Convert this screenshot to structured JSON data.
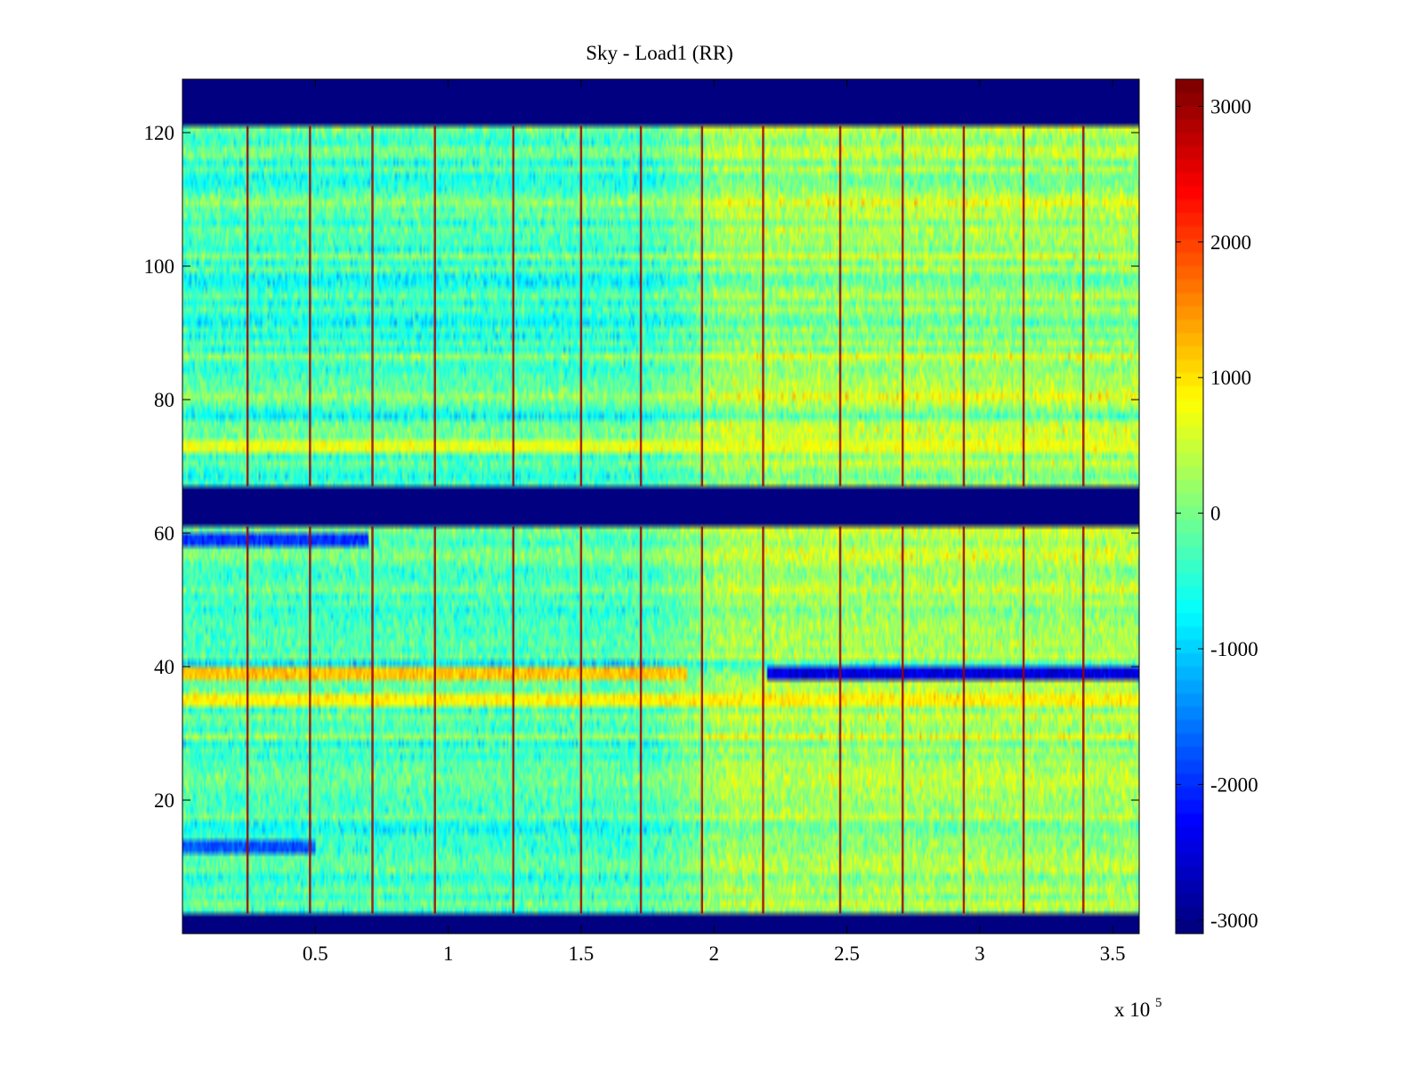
{
  "chart_data": {
    "type": "heatmap",
    "title": "Sky - Load1 (RR)",
    "xlabel": "",
    "ylabel": "",
    "x_multiplier_label": {
      "base": "x 10",
      "exponent": "5"
    },
    "xlim": [
      0,
      3.6
    ],
    "ylim": [
      0,
      128
    ],
    "x_ticks": [
      0.5,
      1,
      1.5,
      2,
      2.5,
      3,
      3.5
    ],
    "x_tick_labels": [
      "0.5",
      "1",
      "1.5",
      "2",
      "2.5",
      "3",
      "3.5"
    ],
    "y_ticks": [
      20,
      40,
      60,
      80,
      100,
      120
    ],
    "y_tick_labels": [
      "20",
      "40",
      "60",
      "80",
      "100",
      "120"
    ],
    "colormap": "jet",
    "clim": [
      -3100,
      3200
    ],
    "colorbar_ticks": [
      3000,
      2000,
      1000,
      0,
      -1000,
      -2000,
      -3000
    ],
    "colorbar_tick_labels": [
      "3000",
      "2000",
      "1000",
      "0",
      "-1000",
      "-2000",
      "-3000"
    ],
    "masked_rows": [
      {
        "y_from": 0,
        "y_to": 3,
        "value": -3100
      },
      {
        "y_from": 61,
        "y_to": 67,
        "value": -3100
      },
      {
        "y_from": 121,
        "y_to": 128,
        "value": -3100
      }
    ],
    "spike_columns_x": [
      0.245,
      0.48,
      0.715,
      0.95,
      1.245,
      1.5,
      1.725,
      1.955,
      2.185,
      2.475,
      2.71,
      2.94,
      3.165,
      3.39
    ],
    "background_level": {
      "early_x_range": [
        0,
        1.9
      ],
      "early_value": -300,
      "late_x_range": [
        1.9,
        3.6
      ],
      "late_value": 250
    },
    "notable_rows": [
      {
        "y": 39,
        "x_from": 0,
        "x_to": 1.9,
        "value": 1200
      },
      {
        "y": 39,
        "x_from": 2.2,
        "x_to": 3.6,
        "value": -2500
      },
      {
        "y": 35,
        "x_from": 0,
        "x_to": 3.6,
        "value": 900
      },
      {
        "y": 73,
        "x_from": 0,
        "x_to": 3.6,
        "value": 700
      },
      {
        "y": 59,
        "x_from": 0,
        "x_to": 0.7,
        "value": -2000
      },
      {
        "y": 13,
        "x_from": 0,
        "x_to": 0.5,
        "value": -1800
      }
    ],
    "grid": false,
    "legend": "colorbar-right"
  },
  "colors": {
    "frame": "#000000",
    "background": "#ffffff"
  }
}
